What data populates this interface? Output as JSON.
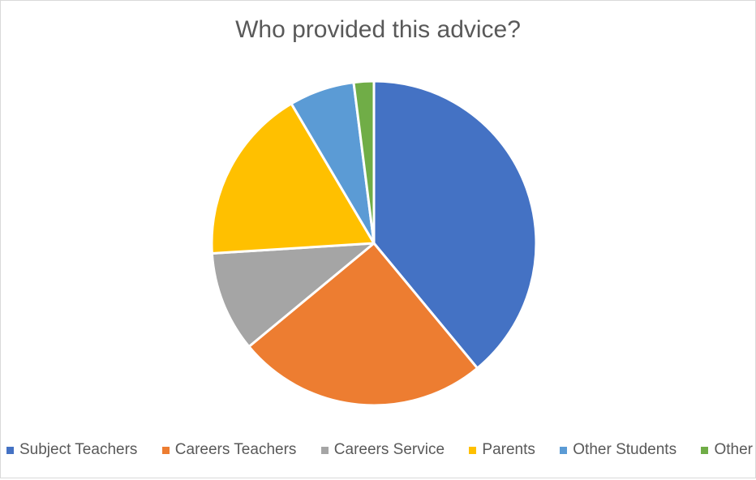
{
  "chart_data": {
    "type": "pie",
    "title": "Who provided this advice?",
    "categories": [
      "Subject Teachers",
      "Careers Teachers",
      "Careers Service",
      "Parents",
      "Other Students",
      "Other"
    ],
    "values": [
      39,
      25,
      10,
      17.5,
      6.5,
      2
    ],
    "colors": [
      "#4472c4",
      "#ed7d31",
      "#a5a5a5",
      "#ffc000",
      "#5b9bd5",
      "#70ad47"
    ],
    "legend_position": "bottom",
    "start_angle_deg": 0,
    "direction": "clockwise"
  }
}
